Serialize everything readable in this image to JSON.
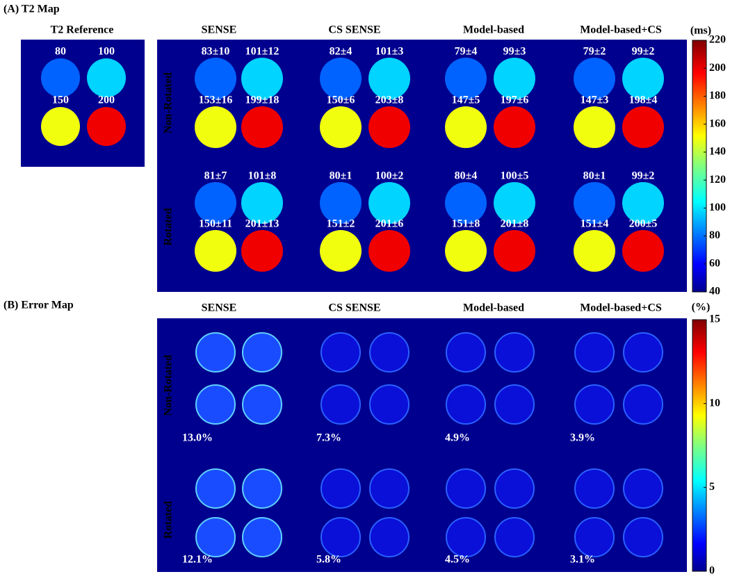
{
  "panel_a": {
    "title": "(A) T2 Map",
    "reference": {
      "title": "T2 Reference",
      "labels": [
        80,
        100,
        150,
        200
      ]
    },
    "columns": [
      "SENSE",
      "CS SENSE",
      "Model-based",
      "Model-based+CS"
    ],
    "rows": [
      "Non-Rotated",
      "Rotated"
    ],
    "cells": [
      [
        [
          "83±10",
          "101±12",
          "153±16",
          "199±18"
        ],
        [
          "82±4",
          "101±3",
          "150±6",
          "203±8"
        ],
        [
          "79±4",
          "99±3",
          "147±5",
          "197±6"
        ],
        [
          "79±2",
          "99±2",
          "147±3",
          "198±4"
        ]
      ],
      [
        [
          "81±7",
          "101±8",
          "150±11",
          "201±13"
        ],
        [
          "80±1",
          "100±2",
          "151±2",
          "201±6"
        ],
        [
          "80±4",
          "100±5",
          "151±8",
          "201±8"
        ],
        [
          "80±1",
          "99±2",
          "151±4",
          "200±5"
        ]
      ]
    ],
    "colorbar": {
      "unit": "(ms)",
      "lim": [
        40,
        220
      ],
      "ticks": [
        220,
        200,
        180,
        160,
        140,
        120,
        100,
        80,
        60,
        40
      ]
    }
  },
  "panel_b": {
    "title": "(B) Error Map",
    "columns": [
      "SENSE",
      "CS SENSE",
      "Model-based",
      "Model-based+CS"
    ],
    "rows": [
      "Non-Rotated",
      "Rotated"
    ],
    "errors": [
      [
        "13.0%",
        "7.3%",
        "4.9%",
        "3.9%"
      ],
      [
        "12.1%",
        "5.8%",
        "4.5%",
        "3.1%"
      ]
    ],
    "colorbar": {
      "unit": "(%)",
      "lim": [
        0,
        15
      ],
      "ticks": [
        15,
        10,
        5,
        0
      ]
    }
  }
}
